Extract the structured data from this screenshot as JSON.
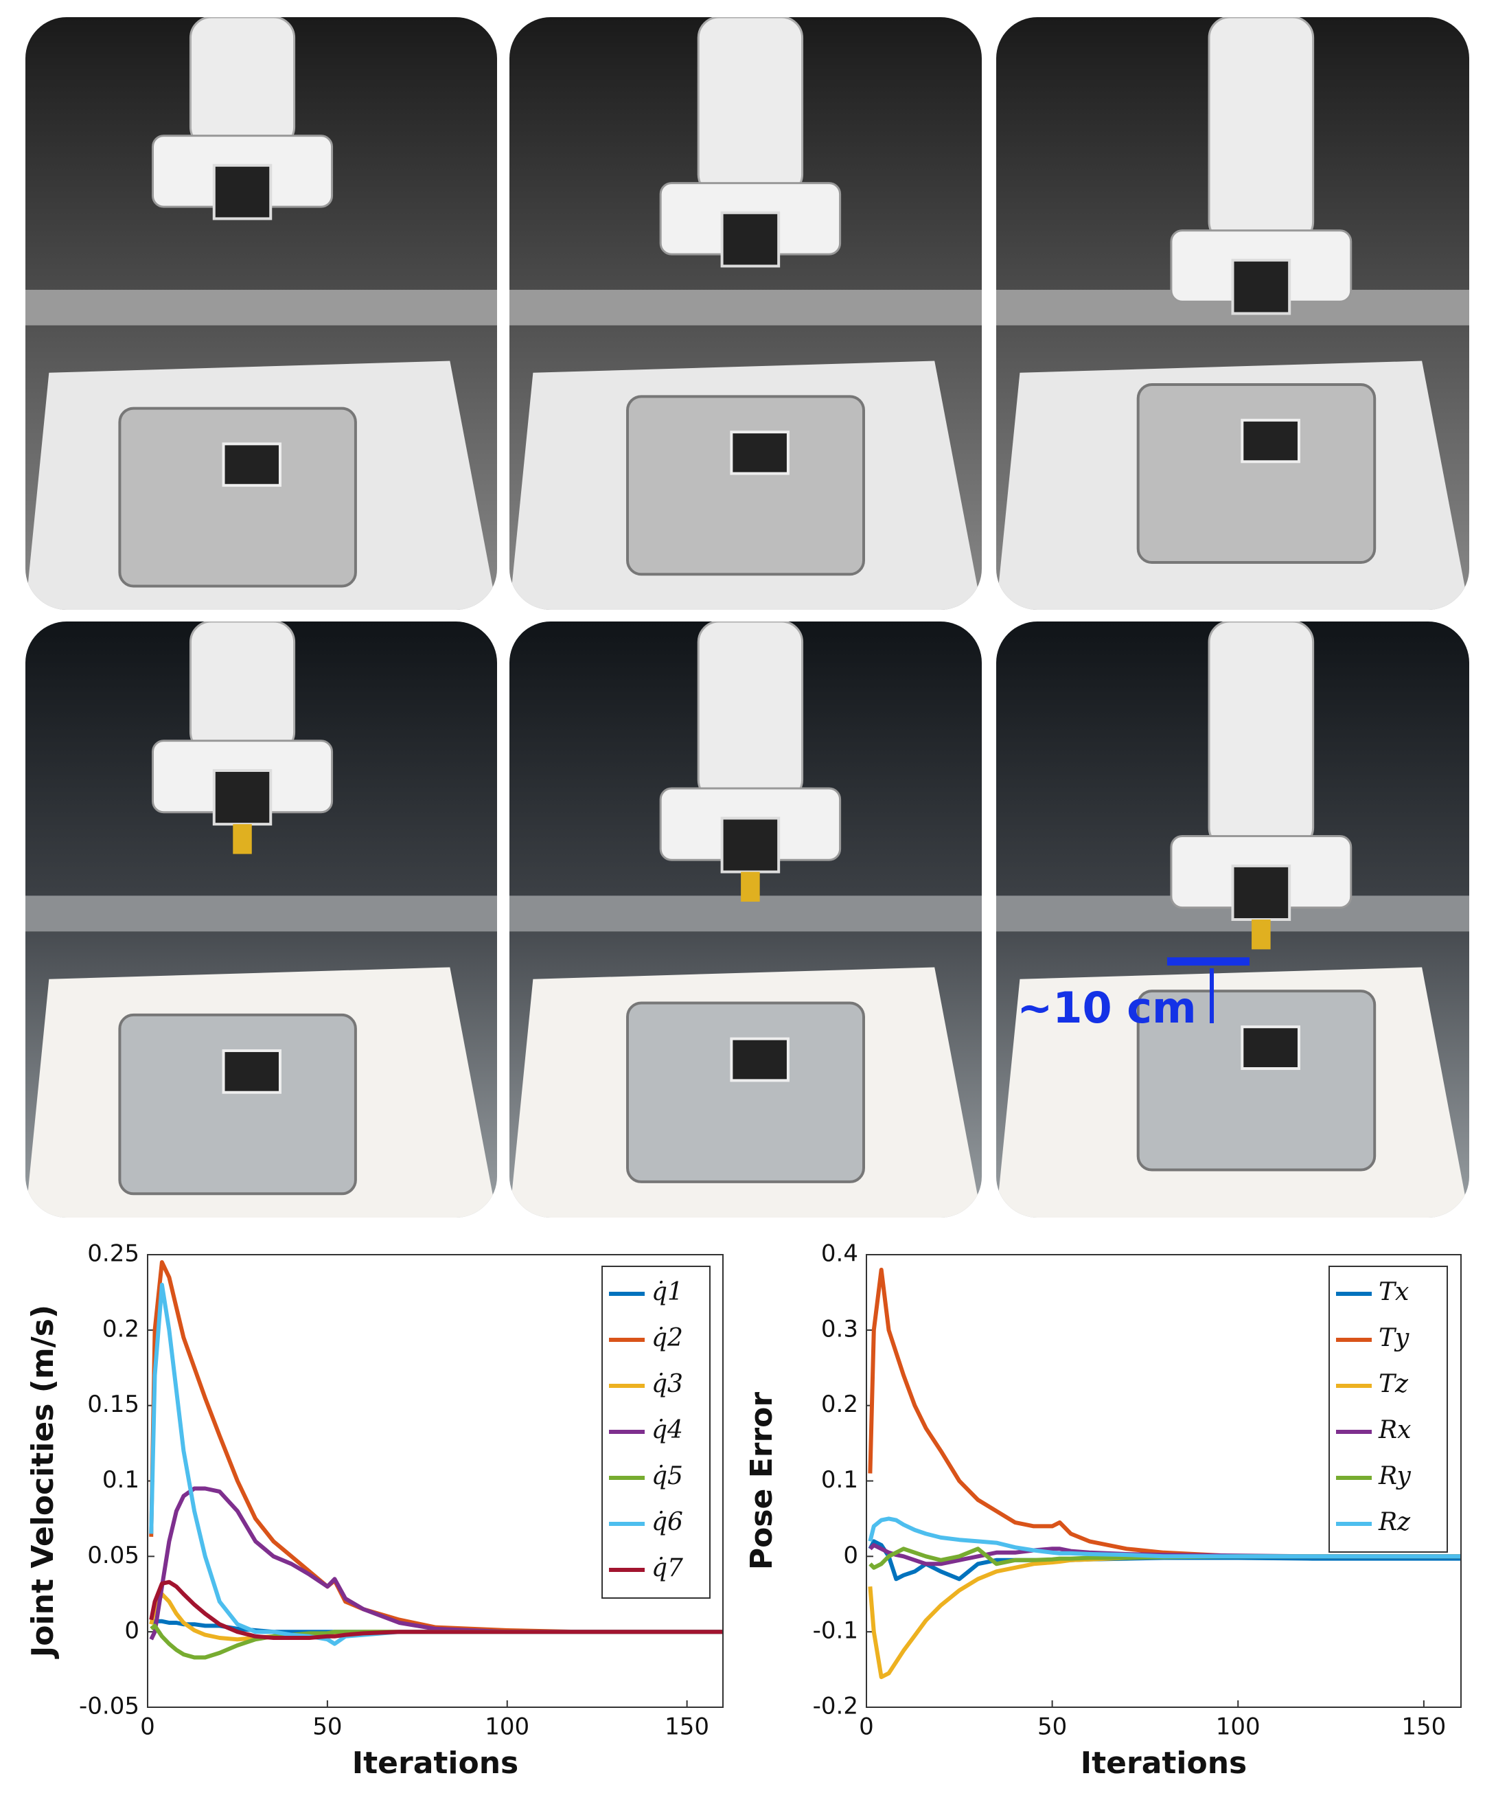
{
  "annotation": "~10 cm",
  "chart_data": [
    {
      "type": "line",
      "xlabel": "Iterations",
      "ylabel": "Joint Velocities (m/s)",
      "xlim": [
        0,
        160
      ],
      "xticks": [
        0,
        50,
        100,
        150
      ],
      "ylim": [
        -0.05,
        0.25
      ],
      "yticks": [
        -0.05,
        0,
        0.05,
        0.1,
        0.15,
        0.2,
        0.25
      ],
      "grid": false,
      "legend": "upper right",
      "x": [
        1,
        2,
        4,
        6,
        8,
        10,
        13,
        16,
        20,
        25,
        30,
        35,
        40,
        45,
        50,
        52,
        55,
        60,
        70,
        80,
        100,
        120,
        140,
        160
      ],
      "series": [
        {
          "name": "q̇1",
          "color": "#0072BD",
          "values": [
            0.006,
            0.007,
            0.007,
            0.006,
            0.006,
            0.005,
            0.005,
            0.004,
            0.004,
            0.002,
            0.001,
            0,
            0,
            0,
            0,
            0,
            0,
            0,
            0,
            0,
            0,
            0,
            0,
            0
          ]
        },
        {
          "name": "q̇2",
          "color": "#D95319",
          "values": [
            0.063,
            0.2,
            0.245,
            0.235,
            0.215,
            0.195,
            0.175,
            0.155,
            0.13,
            0.1,
            0.075,
            0.06,
            0.05,
            0.04,
            0.03,
            0.034,
            0.02,
            0.015,
            0.008,
            0.003,
            0.001,
            0,
            0,
            0
          ]
        },
        {
          "name": "q̇3",
          "color": "#EDB120",
          "values": [
            0.005,
            0.015,
            0.025,
            0.02,
            0.012,
            0.006,
            0.001,
            -0.002,
            -0.004,
            -0.005,
            -0.004,
            -0.003,
            -0.002,
            -0.002,
            -0.001,
            -0.001,
            -0.001,
            0,
            0,
            0,
            0,
            0,
            0,
            0
          ]
        },
        {
          "name": "q̇4",
          "color": "#7E2F8E",
          "values": [
            -0.005,
            0,
            0.03,
            0.06,
            0.08,
            0.09,
            0.095,
            0.095,
            0.093,
            0.08,
            0.06,
            0.05,
            0.045,
            0.038,
            0.03,
            0.035,
            0.022,
            0.015,
            0.006,
            0.002,
            0,
            0,
            0,
            0
          ]
        },
        {
          "name": "q̇5",
          "color": "#77AC30",
          "values": [
            0.002,
            0.004,
            -0.003,
            -0.008,
            -0.012,
            -0.015,
            -0.017,
            -0.017,
            -0.014,
            -0.009,
            -0.005,
            -0.003,
            -0.002,
            -0.001,
            -0.001,
            0,
            0,
            0,
            0,
            0,
            0,
            0,
            0,
            0
          ]
        },
        {
          "name": "q̇6",
          "color": "#4DBEEE",
          "values": [
            0.065,
            0.17,
            0.23,
            0.2,
            0.16,
            0.12,
            0.08,
            0.05,
            0.02,
            0.005,
            0,
            0,
            -0.002,
            -0.003,
            -0.005,
            -0.008,
            -0.003,
            -0.002,
            0,
            0,
            0,
            0,
            0,
            0
          ]
        },
        {
          "name": "q̇7",
          "color": "#A2142F",
          "values": [
            0.008,
            0.02,
            0.032,
            0.033,
            0.03,
            0.025,
            0.018,
            0.012,
            0.005,
            0,
            -0.003,
            -0.004,
            -0.004,
            -0.004,
            -0.003,
            -0.003,
            -0.002,
            -0.001,
            0,
            0,
            0,
            0,
            0,
            0
          ]
        }
      ]
    },
    {
      "type": "line",
      "xlabel": "Iterations",
      "ylabel": "Pose Error",
      "xlim": [
        0,
        160
      ],
      "xticks": [
        0,
        50,
        100,
        150
      ],
      "ylim": [
        -0.2,
        0.4
      ],
      "yticks": [
        -0.2,
        -0.1,
        0,
        0.1,
        0.2,
        0.3,
        0.4
      ],
      "grid": false,
      "legend": "upper right",
      "x": [
        1,
        2,
        4,
        6,
        8,
        10,
        13,
        16,
        20,
        25,
        30,
        35,
        40,
        45,
        50,
        52,
        55,
        60,
        70,
        80,
        100,
        120,
        140,
        160
      ],
      "series": [
        {
          "name": "Tx",
          "color": "#0072BD",
          "values": [
            0.01,
            0.02,
            0.015,
            0,
            -0.03,
            -0.025,
            -0.02,
            -0.01,
            -0.02,
            -0.03,
            -0.01,
            -0.005,
            -0.005,
            -0.005,
            -0.006,
            -0.006,
            -0.005,
            -0.004,
            -0.003,
            -0.002,
            -0.002,
            -0.003,
            -0.003,
            -0.003
          ]
        },
        {
          "name": "Ty",
          "color": "#D95319",
          "values": [
            0.11,
            0.3,
            0.38,
            0.3,
            0.27,
            0.24,
            0.2,
            0.17,
            0.14,
            0.1,
            0.075,
            0.06,
            0.045,
            0.04,
            0.04,
            0.045,
            0.03,
            0.02,
            0.01,
            0.005,
            0,
            0,
            0,
            0
          ]
        },
        {
          "name": "Tz",
          "color": "#EDB120",
          "values": [
            -0.04,
            -0.1,
            -0.16,
            -0.155,
            -0.14,
            -0.125,
            -0.105,
            -0.085,
            -0.065,
            -0.045,
            -0.03,
            -0.02,
            -0.015,
            -0.01,
            -0.008,
            -0.007,
            -0.005,
            -0.004,
            -0.002,
            0,
            0,
            0,
            0,
            0
          ]
        },
        {
          "name": "Rx",
          "color": "#7E2F8E",
          "values": [
            0.01,
            0.015,
            0.01,
            0.005,
            0.002,
            0,
            -0.005,
            -0.01,
            -0.01,
            -0.005,
            0,
            0.005,
            0.005,
            0.008,
            0.01,
            0.01,
            0.007,
            0.005,
            0.003,
            0.002,
            0.001,
            0,
            0,
            0
          ]
        },
        {
          "name": "Ry",
          "color": "#77AC30",
          "values": [
            -0.01,
            -0.015,
            -0.01,
            0,
            0.005,
            0.01,
            0.005,
            0,
            -0.005,
            0,
            0.01,
            -0.01,
            -0.005,
            -0.005,
            -0.004,
            -0.003,
            -0.003,
            -0.002,
            -0.002,
            -0.001,
            0,
            0,
            0,
            0
          ]
        },
        {
          "name": "Rz",
          "color": "#4DBEEE",
          "values": [
            0.02,
            0.04,
            0.048,
            0.05,
            0.048,
            0.042,
            0.035,
            0.03,
            0.025,
            0.022,
            0.02,
            0.018,
            0.012,
            0.008,
            0.005,
            0.004,
            0.004,
            0.003,
            0.002,
            0,
            0,
            0,
            0,
            0
          ]
        }
      ]
    }
  ]
}
